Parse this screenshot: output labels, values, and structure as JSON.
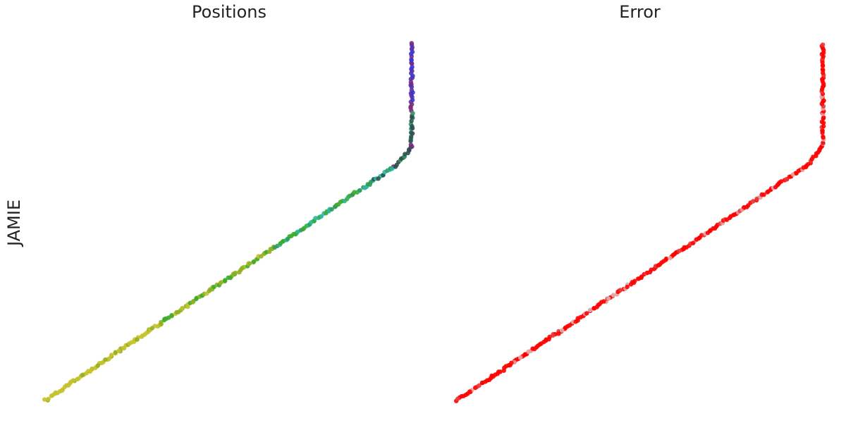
{
  "row_label": "JAMIE",
  "chart_data": [
    {
      "type": "scatter",
      "title": "Positions",
      "xlabel": "",
      "ylabel": "",
      "axes_visible": false,
      "grid": false,
      "legend": "none",
      "xlim": [
        0,
        1
      ],
      "ylim": [
        0,
        1
      ],
      "color_scheme": "point hue varies along the path: yellow-olive at the lower-left start, green through the diagonal, teal near the corner, dark purple then blue at the top of the vertical segment",
      "colors": [
        "#c7c12a",
        "#8fb020",
        "#3cab2c",
        "#2e9a5a",
        "#27b7a0",
        "#2f4f4f",
        "#7a2a80",
        "#3b35d0"
      ],
      "path_vertices": [
        {
          "x": 0.0,
          "y": 0.0
        },
        {
          "x": 0.96,
          "y": 0.66
        },
        {
          "x": 1.0,
          "y": 0.71
        },
        {
          "x": 1.0,
          "y": 1.0
        }
      ],
      "n_points": 260
    },
    {
      "type": "scatter",
      "title": "Error",
      "xlabel": "",
      "ylabel": "",
      "axes_visible": false,
      "grid": false,
      "legend": "none",
      "xlim": [
        0,
        1
      ],
      "ylim": [
        0,
        1
      ],
      "color_scheme": "red = higher error, pale pink / light grey = lower error",
      "colors": [
        "#ff0000",
        "#e83a3a",
        "#ee9a9a",
        "#d8b4b4"
      ],
      "path_vertices": [
        {
          "x": 0.0,
          "y": 0.0
        },
        {
          "x": 0.96,
          "y": 0.66
        },
        {
          "x": 1.0,
          "y": 0.71
        },
        {
          "x": 1.0,
          "y": 1.0
        }
      ],
      "n_points": 260
    }
  ]
}
